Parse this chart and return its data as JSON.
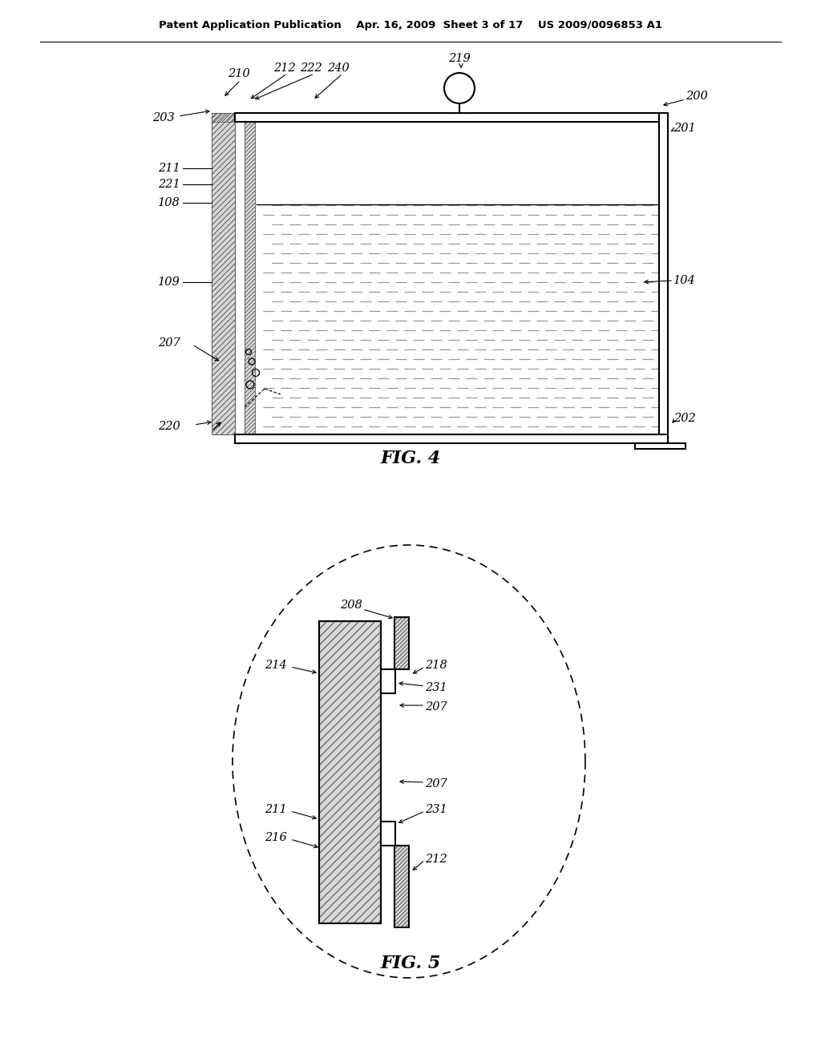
{
  "bg_color": "#ffffff",
  "line_color": "#000000",
  "header_text": "Patent Application Publication    Apr. 16, 2009  Sheet 3 of 17    US 2009/0096853 A1",
  "fig4_label": "FIG. 4",
  "fig5_label": "FIG. 5"
}
